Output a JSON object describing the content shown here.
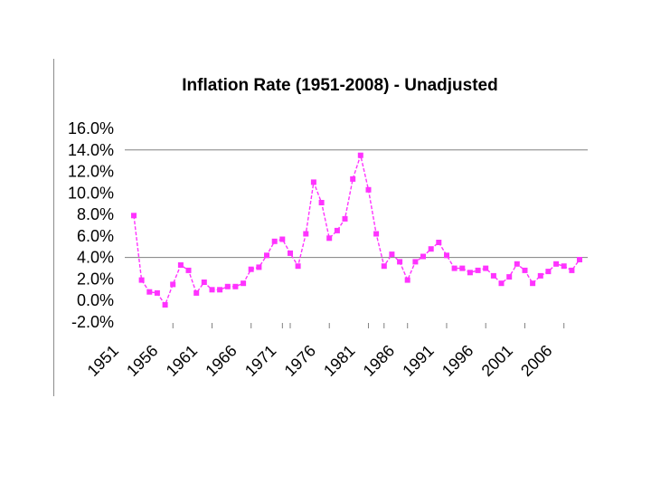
{
  "chart_data": {
    "type": "line",
    "title": "Inflation Rate (1951-2008) - Unadjusted",
    "xlabel": "",
    "ylabel": "",
    "ylim": [
      -2.0,
      16.0
    ],
    "yticks": [
      "16.0%",
      "14.0%",
      "12.0%",
      "10.0%",
      "8.0%",
      "6.0%",
      "4.0%",
      "2.0%",
      "0.0%",
      "-2.0%"
    ],
    "ytick_values": [
      16,
      14,
      12,
      10,
      8,
      6,
      4,
      2,
      0,
      -2
    ],
    "xticks": [
      "1951",
      "1956",
      "1961",
      "1966",
      "1971",
      "1976",
      "1981",
      "1986",
      "1991",
      "1996",
      "2001",
      "2006"
    ],
    "gridlines_at": [
      4.0,
      14.0
    ],
    "legend": "none",
    "series": [
      {
        "name": "Inflation Rate",
        "color": "#ff33ff",
        "style": "dashed-with-square-markers",
        "x": [
          1951,
          1952,
          1953,
          1954,
          1955,
          1956,
          1957,
          1958,
          1959,
          1960,
          1961,
          1962,
          1963,
          1964,
          1965,
          1966,
          1967,
          1968,
          1969,
          1970,
          1971,
          1972,
          1973,
          1974,
          1975,
          1976,
          1977,
          1978,
          1979,
          1980,
          1981,
          1982,
          1983,
          1984,
          1985,
          1986,
          1987,
          1988,
          1989,
          1990,
          1991,
          1992,
          1993,
          1994,
          1995,
          1996,
          1997,
          1998,
          1999,
          2000,
          2001,
          2002,
          2003,
          2004,
          2005,
          2006,
          2007,
          2008
        ],
        "values": [
          7.9,
          1.9,
          0.8,
          0.7,
          -0.4,
          1.5,
          3.3,
          2.8,
          0.7,
          1.7,
          1.0,
          1.0,
          1.3,
          1.3,
          1.6,
          2.9,
          3.1,
          4.2,
          5.5,
          5.7,
          4.4,
          3.2,
          6.2,
          11.0,
          9.1,
          5.8,
          6.5,
          7.6,
          11.3,
          13.5,
          10.3,
          6.2,
          3.2,
          4.3,
          3.6,
          1.9,
          3.6,
          4.1,
          4.8,
          5.4,
          4.2,
          3.0,
          3.0,
          2.6,
          2.8,
          3.0,
          2.3,
          1.6,
          2.2,
          3.4,
          2.8,
          1.6,
          2.3,
          2.7,
          3.4,
          3.2,
          2.8,
          3.8
        ]
      }
    ]
  }
}
